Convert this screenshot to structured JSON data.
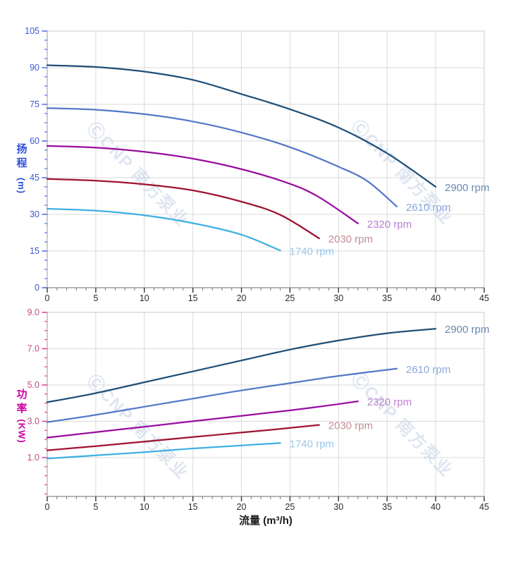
{
  "page": {
    "background": "#ffffff"
  },
  "x_axis_title": "流量 (m³/h)",
  "watermark": {
    "text": "ⒸCNP 南方泵业",
    "color": "#c5d2e6"
  },
  "rpm_labels": [
    "2900 rpm",
    "2610 rpm",
    "2320 rpm",
    "2030 rpm",
    "1740 rpm"
  ],
  "chart_data": [
    {
      "type": "line",
      "name": "head-flow-curves",
      "ylabel": "扬程 (m)",
      "ylabel_cjk": "扬程",
      "ylabel_unit": "(m)",
      "xlabel": "流量 (m³/h)",
      "xlim": [
        0,
        45
      ],
      "xticks": [
        0,
        5,
        10,
        15,
        20,
        25,
        30,
        35,
        40,
        45
      ],
      "xtick_labels": [
        "0",
        "5",
        "10",
        "15",
        "20",
        "25",
        "30",
        "35",
        "40",
        "45"
      ],
      "xminor_step": 1,
      "ylim": [
        0,
        105
      ],
      "yticks": [
        0,
        15,
        30,
        45,
        60,
        75,
        90,
        105
      ],
      "ytick_labels": [
        "0",
        "15",
        "30",
        "45",
        "60",
        "75",
        "90",
        "105"
      ],
      "yminor": {
        "step": 3.75,
        "range": [
          0,
          105
        ]
      },
      "grid": true,
      "legend_position": "right-of-curve-end",
      "axis_color": {
        "ticks": "#5168d9",
        "labels": "#3d56d6",
        "title": "#2e4fd6"
      },
      "series": [
        {
          "name": "2900 rpm",
          "color": "#1e4f78",
          "label_color": "#6a89b0",
          "points": [
            [
              0,
              91
            ],
            [
              5,
              90.3
            ],
            [
              10,
              88.4
            ],
            [
              15,
              85
            ],
            [
              20,
              79.2
            ],
            [
              25,
              73
            ],
            [
              30,
              65.5
            ],
            [
              35,
              55
            ],
            [
              40,
              41.3
            ]
          ]
        },
        {
          "name": "2610 rpm",
          "color": "#5478c8",
          "label_color": "#8ba7de",
          "points": [
            [
              0,
              73.5
            ],
            [
              5,
              72.8
            ],
            [
              10,
              71
            ],
            [
              15,
              68
            ],
            [
              20,
              63.5
            ],
            [
              25,
              57.5
            ],
            [
              30,
              49.5
            ],
            [
              33,
              43.5
            ],
            [
              36,
              33.2
            ]
          ]
        },
        {
          "name": "2320 rpm",
          "color": "#990d9e",
          "label_color": "#bb7fd0",
          "points": [
            [
              0,
              58
            ],
            [
              5,
              57.3
            ],
            [
              10,
              55.6
            ],
            [
              15,
              52.8
            ],
            [
              20,
              48.5
            ],
            [
              25,
              42.5
            ],
            [
              28,
              37
            ],
            [
              32,
              26.3
            ]
          ]
        },
        {
          "name": "2030 rpm",
          "color": "#9e1430",
          "label_color": "#c28d93",
          "points": [
            [
              0,
              44.5
            ],
            [
              5,
              43.8
            ],
            [
              10,
              42.3
            ],
            [
              15,
              39.8
            ],
            [
              20,
              35.2
            ],
            [
              24,
              29.8
            ],
            [
              28,
              20.2
            ]
          ]
        },
        {
          "name": "1740 rpm",
          "color": "#3fb0e4",
          "label_color": "#99c8ec",
          "points": [
            [
              0,
              32.3
            ],
            [
              5,
              31.5
            ],
            [
              10,
              29.6
            ],
            [
              15,
              26.4
            ],
            [
              20,
              21.7
            ],
            [
              24,
              15.2
            ]
          ]
        }
      ]
    },
    {
      "type": "line",
      "name": "power-flow-curves",
      "ylabel": "功率 (KW)",
      "ylabel_cjk": "功率",
      "ylabel_unit": "(KW)",
      "xlabel": "流量 (m³/h)",
      "xlim": [
        0,
        45
      ],
      "xticks": [
        0,
        5,
        10,
        15,
        20,
        25,
        30,
        35,
        40,
        45
      ],
      "xtick_labels": [
        "0",
        "5",
        "10",
        "15",
        "20",
        "25",
        "30",
        "35",
        "40",
        "45"
      ],
      "xminor_step": 1,
      "ylim": [
        -1.14,
        9
      ],
      "yticks": [
        1,
        3,
        5,
        7,
        9
      ],
      "ytick_labels": [
        "1.0",
        "3.0",
        "5.0",
        "7.0",
        "9.0"
      ],
      "yminor": {
        "step": 0.5,
        "range": [
          -1,
          9
        ]
      },
      "grid": true,
      "legend_position": "right-of-curve-end",
      "axis_color": {
        "ticks": "#d44090",
        "labels": "#c04f85",
        "title": "#ce00a6"
      },
      "series": [
        {
          "name": "2900 rpm",
          "color": "#1e4f78",
          "label_color": "#6a89b0",
          "points": [
            [
              0,
              4.05
            ],
            [
              5,
              4.55
            ],
            [
              10,
              5.15
            ],
            [
              15,
              5.75
            ],
            [
              20,
              6.35
            ],
            [
              25,
              6.95
            ],
            [
              30,
              7.45
            ],
            [
              35,
              7.85
            ],
            [
              40,
              8.1
            ]
          ]
        },
        {
          "name": "2610 rpm",
          "color": "#5478c8",
          "label_color": "#8ba7de",
          "points": [
            [
              0,
              2.95
            ],
            [
              5,
              3.35
            ],
            [
              10,
              3.8
            ],
            [
              15,
              4.25
            ],
            [
              20,
              4.7
            ],
            [
              25,
              5.1
            ],
            [
              30,
              5.5
            ],
            [
              36,
              5.9
            ]
          ]
        },
        {
          "name": "2320 rpm",
          "color": "#990d9e",
          "label_color": "#bb7fd0",
          "points": [
            [
              0,
              2.1
            ],
            [
              5,
              2.4
            ],
            [
              10,
              2.7
            ],
            [
              15,
              3.0
            ],
            [
              20,
              3.3
            ],
            [
              25,
              3.6
            ],
            [
              28,
              3.8
            ],
            [
              32,
              4.1
            ]
          ]
        },
        {
          "name": "2030 rpm",
          "color": "#9e1430",
          "label_color": "#c28d93",
          "points": [
            [
              0,
              1.4
            ],
            [
              5,
              1.63
            ],
            [
              10,
              1.88
            ],
            [
              15,
              2.13
            ],
            [
              20,
              2.38
            ],
            [
              24,
              2.58
            ],
            [
              28,
              2.8
            ]
          ]
        },
        {
          "name": "1740 rpm",
          "color": "#3fb0e4",
          "label_color": "#99c8ec",
          "points": [
            [
              0,
              0.95
            ],
            [
              5,
              1.12
            ],
            [
              10,
              1.3
            ],
            [
              15,
              1.5
            ],
            [
              20,
              1.67
            ],
            [
              24,
              1.8
            ]
          ]
        }
      ]
    }
  ]
}
